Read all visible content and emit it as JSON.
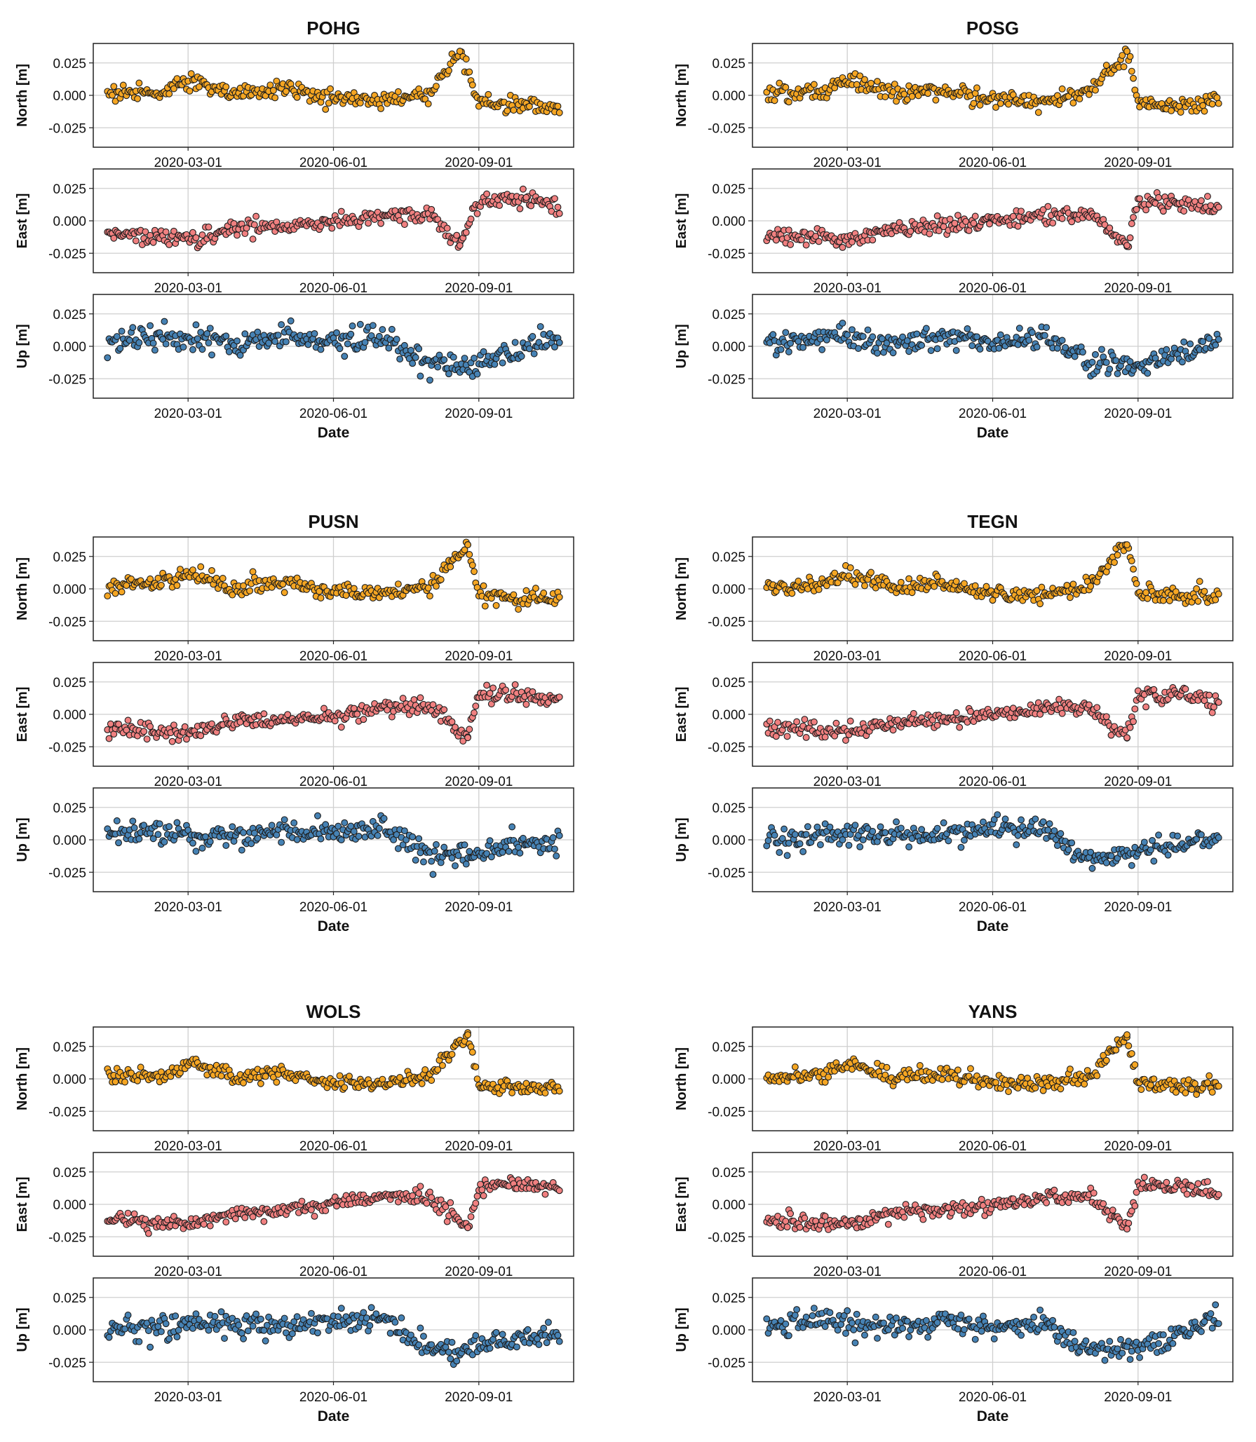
{
  "chart_data": {
    "type": "scatter",
    "x_range": [
      "2020-01-01",
      "2020-10-31"
    ],
    "x_tick_labels": [
      "2020-03-01",
      "2020-06-01",
      "2020-09-01"
    ],
    "x_tick_values": [
      "2020-03-01",
      "2020-06-01",
      "2020-09-01"
    ],
    "y_tick_labels": [
      "0.025",
      "0.000",
      "-0.025"
    ],
    "y_tick_values": [
      0.025,
      0.0,
      -0.025
    ],
    "ylim": [
      -0.04,
      0.04
    ],
    "xlabel": "Date",
    "grid": true,
    "components": [
      {
        "key": "north",
        "label": "North [m]",
        "color": "#f5a623"
      },
      {
        "key": "east",
        "label": "East [m]",
        "color": "#f08080"
      },
      {
        "key": "up",
        "label": "Up [m]",
        "color": "#4682b4"
      }
    ],
    "stations": [
      {
        "name": "POHG",
        "north": {
          "x": [
            "2020-01-15",
            "2020-02-15",
            "2020-03-01",
            "2020-04-01",
            "2020-05-01",
            "2020-06-01",
            "2020-07-01",
            "2020-08-01",
            "2020-08-20",
            "2020-09-01",
            "2020-10-01",
            "2020-10-20"
          ],
          "y": [
            0.002,
            0.003,
            0.012,
            0.001,
            0.005,
            -0.002,
            -0.004,
            0.002,
            0.034,
            -0.005,
            -0.008,
            -0.01
          ]
        },
        "east": {
          "x": [
            "2020-01-15",
            "2020-02-15",
            "2020-03-01",
            "2020-04-01",
            "2020-05-01",
            "2020-06-01",
            "2020-07-01",
            "2020-08-01",
            "2020-08-20",
            "2020-09-01",
            "2020-10-01",
            "2020-10-20"
          ],
          "y": [
            -0.01,
            -0.012,
            -0.015,
            -0.005,
            -0.004,
            -0.001,
            0.002,
            0.005,
            -0.019,
            0.015,
            0.018,
            0.01
          ]
        },
        "up": {
          "x": [
            "2020-01-15",
            "2020-02-15",
            "2020-03-01",
            "2020-04-01",
            "2020-05-01",
            "2020-06-01",
            "2020-07-01",
            "2020-08-01",
            "2020-09-01",
            "2020-10-01",
            "2020-10-20"
          ],
          "y": [
            0.002,
            0.008,
            0.006,
            0.002,
            0.008,
            0.004,
            0.006,
            -0.015,
            -0.012,
            -0.002,
            0.004
          ]
        }
      },
      {
        "name": "POSG",
        "north": {
          "x": [
            "2020-01-15",
            "2020-02-15",
            "2020-03-01",
            "2020-04-01",
            "2020-05-01",
            "2020-06-01",
            "2020-07-01",
            "2020-08-01",
            "2020-08-25",
            "2020-09-01",
            "2020-10-01",
            "2020-10-20"
          ],
          "y": [
            0.002,
            0.004,
            0.012,
            0.0,
            0.004,
            -0.003,
            -0.005,
            0.002,
            0.034,
            -0.004,
            -0.008,
            -0.006
          ]
        },
        "east": {
          "x": [
            "2020-01-15",
            "2020-02-15",
            "2020-03-01",
            "2020-04-01",
            "2020-05-01",
            "2020-06-01",
            "2020-07-01",
            "2020-08-01",
            "2020-08-25",
            "2020-09-01",
            "2020-10-01",
            "2020-10-20"
          ],
          "y": [
            -0.012,
            -0.013,
            -0.014,
            -0.006,
            -0.004,
            0.0,
            0.003,
            0.006,
            -0.019,
            0.014,
            0.016,
            0.01
          ]
        },
        "up": {
          "x": [
            "2020-01-15",
            "2020-02-15",
            "2020-03-01",
            "2020-04-01",
            "2020-05-01",
            "2020-06-01",
            "2020-07-01",
            "2020-08-01",
            "2020-09-01",
            "2020-10-01",
            "2020-10-20"
          ],
          "y": [
            0.001,
            0.007,
            0.005,
            0.002,
            0.007,
            0.004,
            0.008,
            -0.012,
            -0.015,
            -0.003,
            0.002
          ]
        }
      },
      {
        "name": "PUSN",
        "north": {
          "x": [
            "2020-01-15",
            "2020-02-15",
            "2020-03-01",
            "2020-04-01",
            "2020-05-01",
            "2020-06-01",
            "2020-07-01",
            "2020-08-01",
            "2020-08-25",
            "2020-09-01",
            "2020-10-01",
            "2020-10-20"
          ],
          "y": [
            0.002,
            0.004,
            0.012,
            0.0,
            0.005,
            -0.002,
            -0.004,
            0.002,
            0.034,
            -0.005,
            -0.008,
            -0.008
          ]
        },
        "east": {
          "x": [
            "2020-01-15",
            "2020-02-15",
            "2020-03-01",
            "2020-04-01",
            "2020-05-01",
            "2020-06-01",
            "2020-07-01",
            "2020-08-01",
            "2020-08-25",
            "2020-09-01",
            "2020-10-01",
            "2020-10-20"
          ],
          "y": [
            -0.012,
            -0.013,
            -0.015,
            -0.006,
            -0.005,
            0.0,
            0.004,
            0.006,
            -0.018,
            0.016,
            0.014,
            0.01
          ]
        },
        "up": {
          "x": [
            "2020-01-15",
            "2020-02-15",
            "2020-03-01",
            "2020-04-01",
            "2020-05-01",
            "2020-06-01",
            "2020-07-01",
            "2020-08-01",
            "2020-09-01",
            "2020-10-01",
            "2020-10-20"
          ],
          "y": [
            0.001,
            0.006,
            0.005,
            0.001,
            0.005,
            0.006,
            0.01,
            -0.012,
            -0.01,
            -0.004,
            -0.004
          ]
        }
      },
      {
        "name": "TEGN",
        "north": {
          "x": [
            "2020-01-15",
            "2020-02-15",
            "2020-03-01",
            "2020-04-01",
            "2020-05-01",
            "2020-06-01",
            "2020-07-01",
            "2020-08-01",
            "2020-08-25",
            "2020-09-01",
            "2020-10-01",
            "2020-10-20"
          ],
          "y": [
            0.002,
            0.003,
            0.012,
            0.001,
            0.004,
            -0.003,
            -0.005,
            0.002,
            0.034,
            -0.004,
            -0.006,
            -0.006
          ]
        },
        "east": {
          "x": [
            "2020-01-15",
            "2020-02-15",
            "2020-03-01",
            "2020-04-01",
            "2020-05-01",
            "2020-06-01",
            "2020-07-01",
            "2020-08-01",
            "2020-08-25",
            "2020-09-01",
            "2020-10-01",
            "2020-10-20"
          ],
          "y": [
            -0.01,
            -0.012,
            -0.014,
            -0.006,
            -0.004,
            0.0,
            0.004,
            0.005,
            -0.018,
            0.015,
            0.015,
            0.008
          ]
        },
        "up": {
          "x": [
            "2020-01-15",
            "2020-02-15",
            "2020-03-01",
            "2020-04-01",
            "2020-05-01",
            "2020-06-01",
            "2020-07-01",
            "2020-08-01",
            "2020-09-01",
            "2020-10-01",
            "2020-10-20"
          ],
          "y": [
            0.0,
            0.004,
            0.004,
            0.002,
            0.006,
            0.008,
            0.01,
            -0.014,
            -0.01,
            -0.002,
            0.002
          ]
        }
      },
      {
        "name": "WOLS",
        "north": {
          "x": [
            "2020-01-15",
            "2020-02-15",
            "2020-03-01",
            "2020-04-01",
            "2020-05-01",
            "2020-06-01",
            "2020-07-01",
            "2020-08-01",
            "2020-08-25",
            "2020-09-01",
            "2020-10-01",
            "2020-10-20"
          ],
          "y": [
            0.002,
            0.003,
            0.012,
            0.001,
            0.005,
            -0.003,
            -0.004,
            0.003,
            0.034,
            -0.004,
            -0.008,
            -0.006
          ]
        },
        "east": {
          "x": [
            "2020-01-15",
            "2020-02-15",
            "2020-03-01",
            "2020-04-01",
            "2020-05-01",
            "2020-06-01",
            "2020-07-01",
            "2020-08-01",
            "2020-08-25",
            "2020-09-01",
            "2020-10-01",
            "2020-10-20"
          ],
          "y": [
            -0.012,
            -0.014,
            -0.016,
            -0.006,
            -0.005,
            0.0,
            0.006,
            0.006,
            -0.018,
            0.014,
            0.016,
            0.012
          ]
        },
        "up": {
          "x": [
            "2020-01-15",
            "2020-02-15",
            "2020-03-01",
            "2020-04-01",
            "2020-05-01",
            "2020-06-01",
            "2020-07-01",
            "2020-08-01",
            "2020-09-01",
            "2020-10-01",
            "2020-10-20"
          ],
          "y": [
            0.0,
            0.004,
            0.005,
            0.002,
            0.004,
            0.006,
            0.01,
            -0.016,
            -0.014,
            -0.004,
            -0.004
          ]
        }
      },
      {
        "name": "YANS",
        "north": {
          "x": [
            "2020-01-15",
            "2020-02-15",
            "2020-03-01",
            "2020-04-01",
            "2020-05-01",
            "2020-06-01",
            "2020-07-01",
            "2020-08-01",
            "2020-08-25",
            "2020-09-01",
            "2020-10-01",
            "2020-10-20"
          ],
          "y": [
            0.002,
            0.003,
            0.012,
            0.001,
            0.005,
            -0.003,
            -0.005,
            0.002,
            0.034,
            -0.004,
            -0.007,
            -0.004
          ]
        },
        "east": {
          "x": [
            "2020-01-15",
            "2020-02-15",
            "2020-03-01",
            "2020-04-01",
            "2020-05-01",
            "2020-06-01",
            "2020-07-01",
            "2020-08-01",
            "2020-08-25",
            "2020-09-01",
            "2020-10-01",
            "2020-10-20"
          ],
          "y": [
            -0.012,
            -0.014,
            -0.016,
            -0.006,
            -0.005,
            0.0,
            0.005,
            0.006,
            -0.019,
            0.014,
            0.014,
            0.01
          ]
        },
        "up": {
          "x": [
            "2020-01-15",
            "2020-02-15",
            "2020-03-01",
            "2020-04-01",
            "2020-05-01",
            "2020-06-01",
            "2020-07-01",
            "2020-08-01",
            "2020-09-01",
            "2020-10-01",
            "2020-10-20"
          ],
          "y": [
            0.003,
            0.008,
            0.004,
            0.002,
            0.006,
            0.002,
            0.006,
            -0.016,
            -0.014,
            -0.002,
            0.008
          ]
        }
      }
    ]
  }
}
